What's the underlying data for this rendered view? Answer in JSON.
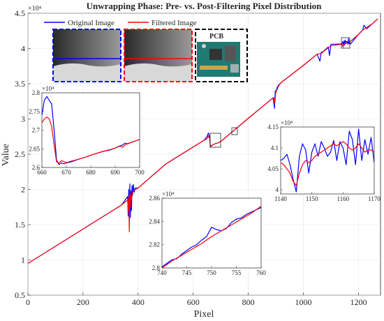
{
  "chart_data": {
    "type": "line",
    "title": "Unwrapping Phase: Pre- vs. Post-Filtering Pixel Distribution",
    "xlabel": "Pixel",
    "ylabel": "Value",
    "xlim": [
      0,
      1280
    ],
    "ylim": [
      0.5,
      4.5
    ],
    "y_multiplier": "×10⁴",
    "xticks": [
      0,
      200,
      400,
      600,
      800,
      1000,
      1200
    ],
    "yticks": [
      0.5,
      1,
      1.5,
      2,
      2.5,
      3,
      3.5,
      4,
      4.5
    ],
    "legend": {
      "placement": "top-left",
      "entries": [
        "Original Image",
        "Filtered Image"
      ]
    },
    "colors": {
      "original": "#0000ff",
      "filtered": "#ff0000"
    },
    "series": [
      {
        "name": "Original Image",
        "x": [
          0,
          340,
          362,
          364,
          366,
          368,
          370,
          372,
          374,
          376,
          378,
          380,
          383,
          386,
          390,
          400,
          500,
          640,
          650,
          655,
          660,
          662,
          664,
          667,
          670,
          675,
          680,
          690,
          700,
          800,
          890,
          895,
          898,
          900,
          905,
          910,
          920,
          1000,
          1050,
          1060,
          1065,
          1070,
          1090,
          1095,
          1100,
          1140,
          1143,
          1146,
          1148,
          1150,
          1152,
          1154,
          1156,
          1158,
          1160,
          1162,
          1164,
          1166,
          1168,
          1170,
          1200,
          1215,
          1220,
          1230,
          1250,
          1270
        ],
        "values": [
          0.95,
          1.78,
          1.9,
          1.62,
          2.0,
          1.52,
          2.08,
          1.6,
          1.98,
          1.7,
          2.06,
          1.92,
          2.07,
          1.96,
          2.02,
          2.02,
          2.36,
          2.7,
          2.75,
          2.8,
          2.75,
          2.6,
          2.62,
          2.62,
          2.63,
          2.64,
          2.65,
          2.66,
          2.68,
          3.01,
          3.3,
          3.15,
          3.4,
          3.38,
          3.45,
          3.48,
          3.52,
          3.76,
          3.92,
          3.82,
          3.95,
          3.95,
          4.02,
          3.9,
          4.06,
          4.065,
          4.1,
          4.04,
          4.11,
          4.05,
          4.12,
          4.07,
          4.1,
          4.08,
          4.09,
          4.06,
          4.14,
          4.07,
          4.1,
          4.06,
          4.2,
          4.26,
          4.33,
          4.28,
          4.35,
          4.42
        ]
      },
      {
        "name": "Filtered Image",
        "x": [
          0,
          340,
          362,
          364,
          366,
          368,
          370,
          372,
          374,
          376,
          380,
          385,
          390,
          400,
          500,
          640,
          650,
          655,
          660,
          662,
          664,
          667,
          670,
          675,
          680,
          690,
          700,
          800,
          890,
          893,
          896,
          900,
          905,
          910,
          920,
          1000,
          1050,
          1065,
          1100,
          1140,
          1144,
          1146,
          1150,
          1155,
          1160,
          1165,
          1170,
          1200,
          1215,
          1230,
          1250,
          1270
        ],
        "values": [
          0.95,
          1.78,
          1.85,
          1.7,
          1.9,
          1.4,
          1.95,
          1.75,
          1.92,
          1.85,
          1.96,
          1.98,
          2.0,
          2.02,
          2.36,
          2.7,
          2.72,
          2.76,
          2.72,
          2.62,
          2.61,
          2.62,
          2.63,
          2.64,
          2.65,
          2.66,
          2.68,
          3.01,
          3.3,
          3.3,
          3.22,
          3.38,
          3.42,
          3.47,
          3.52,
          3.76,
          3.92,
          3.93,
          4.04,
          4.06,
          4.02,
          4.05,
          4.07,
          4.09,
          4.1,
          4.1,
          4.1,
          4.2,
          4.26,
          4.3,
          4.35,
          4.42
        ]
      }
    ],
    "insets": [
      {
        "xlim": [
          660,
          700
        ],
        "ylim": [
          2.6,
          2.8
        ],
        "y_multiplier": "×10⁴",
        "xticks": [
          660,
          670,
          680,
          690,
          700
        ],
        "yticks": [
          2.6,
          2.65,
          2.7,
          2.75,
          2.8
        ],
        "series": [
          {
            "name": "Original Image",
            "x": [
              660,
              661,
              662,
              663,
              664,
              665,
              666,
              667,
              668,
              669,
              670,
              672,
              675,
              678,
              680,
              682,
              685,
              688,
              690,
              692,
              693,
              694,
              695,
              697,
              700
            ],
            "values": [
              2.74,
              2.78,
              2.79,
              2.78,
              2.77,
              2.7,
              2.62,
              2.608,
              2.612,
              2.61,
              2.612,
              2.615,
              2.622,
              2.628,
              2.633,
              2.637,
              2.643,
              2.647,
              2.652,
              2.658,
              2.66,
              2.665,
              2.663,
              2.668,
              2.675
            ]
          },
          {
            "name": "Filtered Image",
            "x": [
              660,
              661,
              662,
              663,
              664,
              665,
              666,
              667,
              668,
              669,
              670,
              672,
              675,
              678,
              680,
              682,
              685,
              688,
              690,
              692,
              693,
              694,
              695,
              697,
              700
            ],
            "values": [
              2.72,
              2.73,
              2.735,
              2.73,
              2.71,
              2.66,
              2.615,
              2.612,
              2.618,
              2.616,
              2.613,
              2.617,
              2.622,
              2.628,
              2.633,
              2.637,
              2.643,
              2.648,
              2.652,
              2.657,
              2.654,
              2.66,
              2.664,
              2.668,
              2.675
            ]
          }
        ]
      },
      {
        "xlim": [
          740,
          760
        ],
        "ylim": [
          2.8,
          2.86
        ],
        "y_multiplier": "×10⁴",
        "xticks": [
          740,
          745,
          750,
          755,
          760
        ],
        "yticks": [
          2.8,
          2.82,
          2.84,
          2.86
        ],
        "series": [
          {
            "name": "Original Image",
            "x": [
              740,
              741,
              742,
              743,
              744,
              745,
              746,
              747,
              748,
              749,
              750,
              751,
              752,
              753,
              754,
              755,
              756,
              757,
              758,
              759,
              760
            ],
            "values": [
              2.801,
              2.804,
              2.807,
              2.808,
              2.812,
              2.815,
              2.818,
              2.82,
              2.824,
              2.827,
              2.835,
              2.833,
              2.832,
              2.834,
              2.839,
              2.842,
              2.843,
              2.846,
              2.848,
              2.85,
              2.852
            ]
          },
          {
            "name": "Filtered Image",
            "x": [
              740,
              742,
              744,
              746,
              748,
              750,
              752,
              754,
              756,
              758,
              760
            ],
            "values": [
              2.8,
              2.806,
              2.811,
              2.816,
              2.821,
              2.827,
              2.832,
              2.837,
              2.842,
              2.847,
              2.853
            ]
          }
        ]
      },
      {
        "xlim": [
          1140,
          1170
        ],
        "ylim": [
          3.99,
          4.15
        ],
        "y_multiplier": "×10⁴",
        "xticks": [
          1140,
          1150,
          1160,
          1170
        ],
        "yticks": [
          4.0,
          4.05,
          4.1,
          4.15
        ],
        "series": [
          {
            "name": "Original Image",
            "x": [
              1140,
              1141,
              1142,
              1143,
              1144,
              1145,
              1146,
              1147,
              1148,
              1149,
              1150,
              1151,
              1152,
              1153,
              1154,
              1155,
              1156,
              1157,
              1158,
              1159,
              1160,
              1161,
              1162,
              1163,
              1164,
              1165,
              1166,
              1167,
              1168,
              1169,
              1170
            ],
            "values": [
              4.07,
              4.075,
              4.085,
              4.06,
              4.025,
              3.995,
              4.08,
              4.11,
              4.095,
              4.04,
              4.09,
              4.11,
              4.08,
              4.115,
              4.1,
              4.08,
              4.09,
              4.118,
              4.07,
              4.115,
              4.1,
              4.06,
              4.14,
              4.12,
              4.06,
              4.145,
              4.07,
              4.12,
              4.085,
              4.125,
              4.065
            ]
          },
          {
            "name": "Filtered Image",
            "x": [
              1140,
              1141,
              1142,
              1143,
              1144,
              1145,
              1146,
              1147,
              1148,
              1149,
              1150,
              1151,
              1152,
              1153,
              1154,
              1155,
              1156,
              1157,
              1158,
              1159,
              1160,
              1161,
              1162,
              1163,
              1164,
              1165,
              1166,
              1167,
              1168,
              1169,
              1170
            ],
            "values": [
              4.065,
              4.06,
              4.05,
              4.04,
              4.02,
              4.01,
              4.04,
              4.06,
              4.07,
              4.065,
              4.07,
              4.08,
              4.085,
              4.09,
              4.095,
              4.1,
              4.105,
              4.11,
              4.105,
              4.11,
              4.115,
              4.11,
              4.1,
              4.095,
              4.1,
              4.11,
              4.1,
              4.09,
              4.095,
              4.095,
              4.09
            ]
          }
        ]
      }
    ],
    "thumbnails": [
      {
        "label": "",
        "border": "#0000ff",
        "line": "#0000ff"
      },
      {
        "label": "",
        "border": "#ff0000",
        "line": "#ff0000"
      },
      {
        "label": "PCB",
        "border": "#000000"
      }
    ]
  }
}
